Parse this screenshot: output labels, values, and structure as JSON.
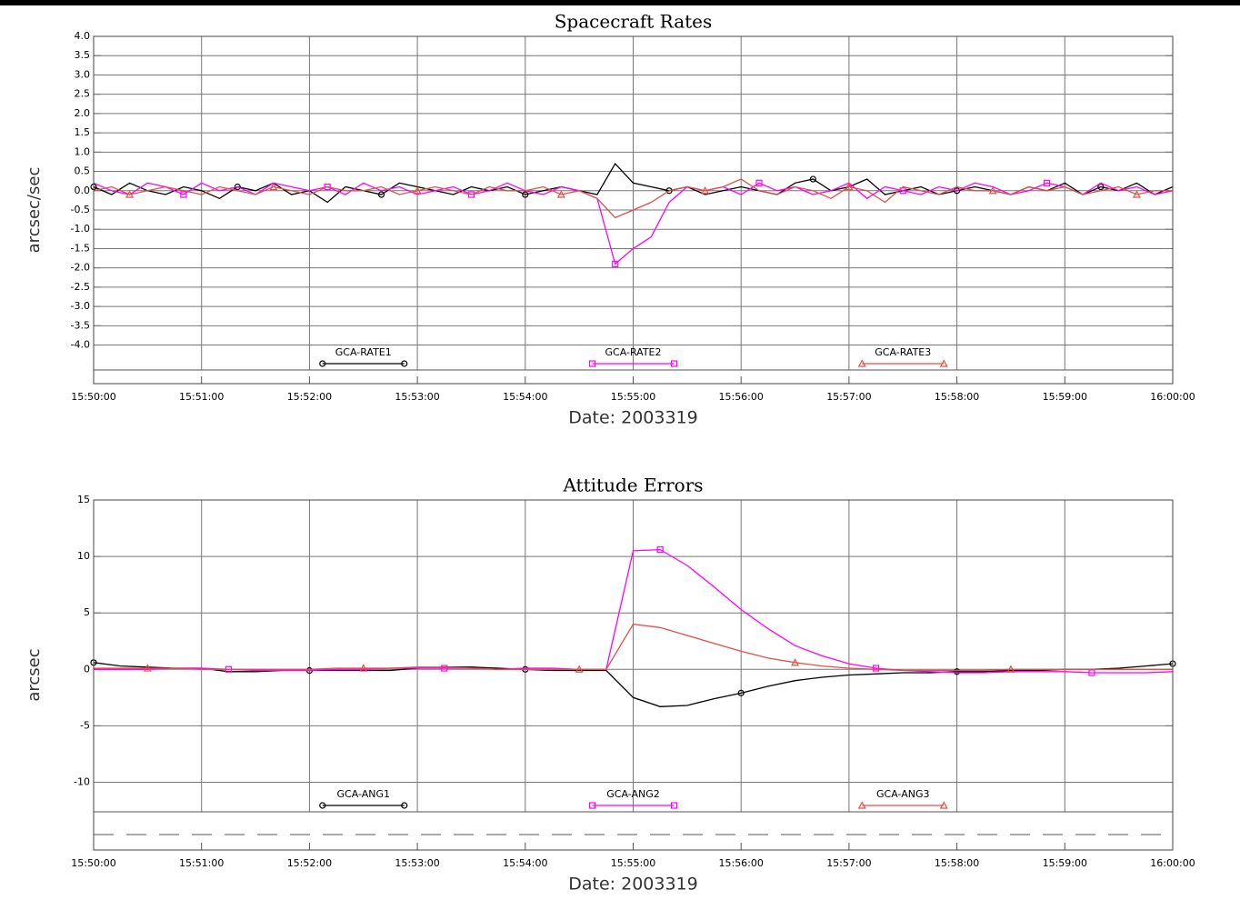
{
  "chart_data": [
    {
      "type": "line",
      "title": "Spacecraft Rates",
      "ylabel": "arcsec/sec",
      "xlabel": "Date: 2003319",
      "xlim": [
        "15:50:00",
        "16:00:00"
      ],
      "xticks": [
        "15:50:00",
        "15:51:00",
        "15:52:00",
        "15:53:00",
        "15:54:00",
        "15:55:00",
        "15:56:00",
        "15:57:00",
        "15:58:00",
        "15:59:00",
        "16:00:00"
      ],
      "ylim": [
        -5,
        4
      ],
      "yticks": [
        {
          "value": 4,
          "label": "4.0"
        },
        {
          "value": 3.5,
          "label": "3.5"
        },
        {
          "value": 3,
          "label": "3.0"
        },
        {
          "value": 2.5,
          "label": "2.5"
        },
        {
          "value": 2,
          "label": "2.0"
        },
        {
          "value": 1.5,
          "label": "1.5"
        },
        {
          "value": 1,
          "label": "1.0"
        },
        {
          "value": 0.5,
          "label": "0.5"
        },
        {
          "value": 0,
          "label": "0.0"
        },
        {
          "value": -0.5,
          "label": "-0.5"
        },
        {
          "value": -1,
          "label": "-1.0"
        },
        {
          "value": -1.5,
          "label": "-1.5"
        },
        {
          "value": -2,
          "label": "-2.0"
        },
        {
          "value": -2.5,
          "label": "-2.5"
        },
        {
          "value": -3,
          "label": "-3.0"
        },
        {
          "value": -3.5,
          "label": "-3.5"
        },
        {
          "value": -4,
          "label": "-4.0"
        }
      ],
      "grid": true,
      "x": [
        "15:50:00",
        "15:50:10",
        "15:50:20",
        "15:50:30",
        "15:50:40",
        "15:50:50",
        "15:51:00",
        "15:51:10",
        "15:51:20",
        "15:51:30",
        "15:51:40",
        "15:51:50",
        "15:52:00",
        "15:52:10",
        "15:52:20",
        "15:52:30",
        "15:52:40",
        "15:52:50",
        "15:53:00",
        "15:53:10",
        "15:53:20",
        "15:53:30",
        "15:53:40",
        "15:53:50",
        "15:54:00",
        "15:54:10",
        "15:54:20",
        "15:54:30",
        "15:54:40",
        "15:54:50",
        "15:55:00",
        "15:55:10",
        "15:55:20",
        "15:55:30",
        "15:55:40",
        "15:55:50",
        "15:56:00",
        "15:56:10",
        "15:56:20",
        "15:56:30",
        "15:56:40",
        "15:56:50",
        "15:57:00",
        "15:57:10",
        "15:57:20",
        "15:57:30",
        "15:57:40",
        "15:57:50",
        "15:58:00",
        "15:58:10",
        "15:58:20",
        "15:58:30",
        "15:58:40",
        "15:58:50",
        "15:59:00",
        "15:59:10",
        "15:59:20",
        "15:59:30",
        "15:59:40",
        "15:59:50",
        "16:00:00"
      ],
      "series": [
        {
          "name": "GCA-RATE1",
          "color": "#000000",
          "marker": "circle",
          "values": [
            0.1,
            -0.1,
            0.2,
            0.0,
            -0.1,
            0.1,
            0.0,
            -0.2,
            0.1,
            0.0,
            0.2,
            -0.1,
            0.0,
            -0.3,
            0.1,
            0.0,
            -0.1,
            0.2,
            0.1,
            0.0,
            -0.1,
            0.1,
            0.0,
            0.1,
            -0.1,
            0.0,
            0.1,
            0.0,
            -0.1,
            0.7,
            0.2,
            0.1,
            0.0,
            0.1,
            -0.1,
            0.0,
            0.1,
            0.0,
            -0.1,
            0.2,
            0.3,
            0.0,
            0.1,
            0.3,
            -0.1,
            0.0,
            0.1,
            -0.1,
            0.0,
            0.1,
            0.0,
            -0.1,
            0.1,
            0.0,
            0.2,
            -0.1,
            0.1,
            0.0,
            0.2,
            -0.1,
            0.1
          ]
        },
        {
          "name": "GCA-RATE2",
          "color": "#ff00ff",
          "marker": "square",
          "values": [
            0.2,
            0.0,
            -0.1,
            0.2,
            0.1,
            -0.1,
            0.2,
            0.0,
            0.1,
            -0.1,
            0.2,
            0.1,
            0.0,
            0.1,
            -0.1,
            0.2,
            0.0,
            0.1,
            -0.1,
            0.0,
            0.1,
            -0.1,
            0.0,
            0.2,
            0.0,
            -0.1,
            0.1,
            0.0,
            -0.2,
            -1.9,
            -1.5,
            -1.2,
            -0.3,
            0.1,
            0.0,
            0.1,
            -0.1,
            0.2,
            0.0,
            0.1,
            -0.1,
            0.0,
            0.2,
            -0.2,
            0.1,
            0.0,
            -0.1,
            0.1,
            0.0,
            0.2,
            0.1,
            -0.1,
            0.0,
            0.2,
            0.1,
            -0.1,
            0.2,
            0.0,
            0.1,
            -0.1,
            0.0
          ]
        },
        {
          "name": "GCA-RATE3",
          "color": "#e0504a",
          "marker": "triangle",
          "values": [
            0.0,
            0.1,
            -0.1,
            0.0,
            0.1,
            0.0,
            -0.1,
            0.1,
            0.0,
            -0.1,
            0.1,
            0.0,
            -0.1,
            0.1,
            0.0,
            0.0,
            0.1,
            -0.1,
            0.0,
            0.1,
            0.0,
            -0.1,
            0.1,
            0.0,
            0.0,
            0.1,
            -0.1,
            0.0,
            -0.2,
            -0.7,
            -0.5,
            -0.3,
            0.0,
            0.1,
            0.0,
            0.1,
            0.3,
            0.0,
            -0.1,
            0.1,
            0.0,
            -0.2,
            0.1,
            0.0,
            -0.3,
            0.1,
            0.0,
            -0.1,
            0.1,
            0.0,
            0.0,
            -0.1,
            0.1,
            0.0,
            0.1,
            -0.1,
            0.0,
            0.1,
            -0.1,
            0.0,
            0.0
          ]
        }
      ]
    },
    {
      "type": "line",
      "title": "Attitude Errors",
      "ylabel": "arcsec",
      "xlabel": "Date: 2003319",
      "xlim": [
        "15:50:00",
        "16:00:00"
      ],
      "xticks": [
        "15:50:00",
        "15:51:00",
        "15:52:00",
        "15:53:00",
        "15:54:00",
        "15:55:00",
        "15:56:00",
        "15:57:00",
        "15:58:00",
        "15:59:00",
        "16:00:00"
      ],
      "ylim": [
        -16,
        15
      ],
      "yticks": [
        -10,
        -5,
        0,
        5,
        10,
        15
      ],
      "grid": true,
      "x": [
        "15:50:00",
        "15:50:15",
        "15:50:30",
        "15:50:45",
        "15:51:00",
        "15:51:15",
        "15:51:30",
        "15:51:45",
        "15:52:00",
        "15:52:15",
        "15:52:30",
        "15:52:45",
        "15:53:00",
        "15:53:15",
        "15:53:30",
        "15:53:45",
        "15:54:00",
        "15:54:15",
        "15:54:30",
        "15:54:45",
        "15:55:00",
        "15:55:15",
        "15:55:30",
        "15:55:45",
        "15:56:00",
        "15:56:15",
        "15:56:30",
        "15:56:45",
        "15:57:00",
        "15:57:15",
        "15:57:30",
        "15:57:45",
        "15:58:00",
        "15:58:15",
        "15:58:30",
        "15:58:45",
        "15:59:00",
        "15:59:15",
        "15:59:30",
        "15:59:45",
        "16:00:00"
      ],
      "series": [
        {
          "name": "GCA-ANG1",
          "color": "#000000",
          "marker": "circle",
          "values": [
            0.6,
            0.3,
            0.2,
            0.1,
            0.1,
            -0.2,
            -0.2,
            -0.1,
            -0.1,
            -0.1,
            -0.1,
            -0.1,
            0.1,
            0.2,
            0.2,
            0.1,
            0.0,
            -0.1,
            -0.1,
            -0.1,
            -2.5,
            -3.3,
            -3.2,
            -2.6,
            -2.1,
            -1.5,
            -1.0,
            -0.7,
            -0.5,
            -0.4,
            -0.3,
            -0.3,
            -0.2,
            -0.2,
            -0.1,
            -0.1,
            0.0,
            0.0,
            0.1,
            0.3,
            0.5
          ]
        },
        {
          "name": "GCA-ANG2",
          "color": "#ff00ff",
          "marker": "square",
          "values": [
            0.0,
            0.0,
            0.0,
            0.1,
            0.1,
            0.0,
            -0.1,
            -0.1,
            -0.1,
            0.0,
            0.0,
            0.1,
            0.1,
            0.1,
            0.1,
            0.0,
            0.1,
            0.1,
            0.0,
            0.0,
            10.5,
            10.6,
            9.2,
            7.3,
            5.3,
            3.6,
            2.1,
            1.2,
            0.5,
            0.1,
            -0.1,
            -0.2,
            -0.3,
            -0.3,
            -0.2,
            -0.2,
            -0.2,
            -0.3,
            -0.3,
            -0.3,
            -0.2
          ]
        },
        {
          "name": "GCA-ANG3",
          "color": "#e0504a",
          "marker": "triangle",
          "values": [
            0.1,
            0.1,
            0.1,
            0.1,
            0.0,
            0.0,
            0.0,
            0.0,
            0.0,
            0.1,
            0.1,
            0.1,
            0.2,
            0.2,
            0.1,
            0.0,
            0.0,
            0.0,
            0.0,
            0.0,
            4.0,
            3.7,
            3.0,
            2.3,
            1.6,
            1.0,
            0.6,
            0.3,
            0.1,
            0.0,
            -0.1,
            -0.1,
            -0.1,
            -0.1,
            0.0,
            0.0,
            0.0,
            0.0,
            0.0,
            0.0,
            0.0
          ]
        }
      ]
    }
  ]
}
